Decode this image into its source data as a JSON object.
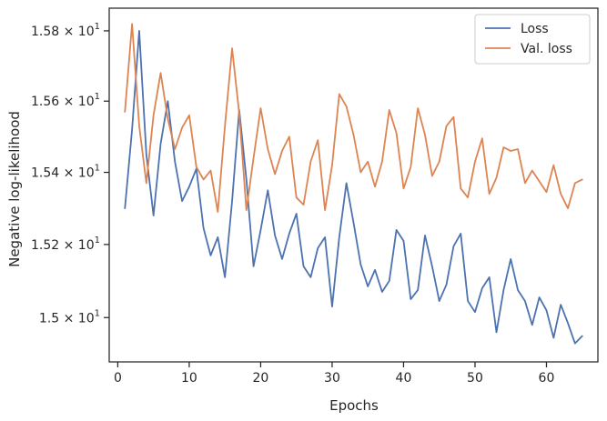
{
  "chart_data": {
    "type": "line",
    "title": "",
    "xlabel": "Epochs",
    "ylabel": "Negative log-likelihood",
    "xlim": [
      -1.2,
      67.2
    ],
    "ylim": [
      14.88,
      15.865
    ],
    "yscale": "log",
    "grid": false,
    "legend_position": "top-right",
    "x_ticks": [
      0,
      10,
      20,
      30,
      40,
      50,
      60
    ],
    "y_ticks": [
      {
        "value": 15.0,
        "mantissa": "1.5",
        "exponent": "1"
      },
      {
        "value": 15.2,
        "mantissa": "1.52",
        "exponent": "1"
      },
      {
        "value": 15.4,
        "mantissa": "1.54",
        "exponent": "1"
      },
      {
        "value": 15.6,
        "mantissa": "1.56",
        "exponent": "1"
      },
      {
        "value": 15.8,
        "mantissa": "1.58",
        "exponent": "1"
      }
    ],
    "x": [
      1,
      2,
      3,
      4,
      5,
      6,
      7,
      8,
      9,
      10,
      11,
      12,
      13,
      14,
      15,
      16,
      17,
      18,
      19,
      20,
      21,
      22,
      23,
      24,
      25,
      26,
      27,
      28,
      29,
      30,
      31,
      32,
      33,
      34,
      35,
      36,
      37,
      38,
      39,
      40,
      41,
      42,
      43,
      44,
      45,
      46,
      47,
      48,
      49,
      50,
      51,
      52,
      53,
      54,
      55,
      56,
      57,
      58,
      59,
      60,
      61,
      62,
      63,
      64,
      65
    ],
    "series": [
      {
        "name": "Loss",
        "color": "#4c72b0",
        "values": [
          15.3,
          15.52,
          15.8,
          15.45,
          15.28,
          15.48,
          15.6,
          15.43,
          15.32,
          15.36,
          15.41,
          15.245,
          15.17,
          15.22,
          15.11,
          15.32,
          15.575,
          15.38,
          15.14,
          15.24,
          15.35,
          15.225,
          15.16,
          15.23,
          15.285,
          15.14,
          15.11,
          15.19,
          15.22,
          15.03,
          15.22,
          15.37,
          15.26,
          15.145,
          15.085,
          15.13,
          15.07,
          15.1,
          15.24,
          15.21,
          15.05,
          15.075,
          15.225,
          15.14,
          15.045,
          15.09,
          15.195,
          15.23,
          15.045,
          15.015,
          15.08,
          15.11,
          14.96,
          15.075,
          15.16,
          15.075,
          15.045,
          14.98,
          15.055,
          15.02,
          14.945,
          15.035,
          14.985,
          14.93,
          14.95
        ]
      },
      {
        "name": "Val. loss",
        "color": "#dd8452",
        "values": [
          15.57,
          15.82,
          15.53,
          15.37,
          15.56,
          15.68,
          15.55,
          15.465,
          15.525,
          15.56,
          15.415,
          15.38,
          15.405,
          15.29,
          15.53,
          15.75,
          15.565,
          15.295,
          15.44,
          15.58,
          15.465,
          15.395,
          15.46,
          15.5,
          15.33,
          15.31,
          15.43,
          15.49,
          15.295,
          15.42,
          15.62,
          15.585,
          15.505,
          15.4,
          15.43,
          15.36,
          15.43,
          15.575,
          15.51,
          15.355,
          15.415,
          15.58,
          15.505,
          15.39,
          15.43,
          15.53,
          15.555,
          15.355,
          15.33,
          15.43,
          15.495,
          15.34,
          15.385,
          15.47,
          15.46,
          15.465,
          15.37,
          15.405,
          15.375,
          15.345,
          15.42,
          15.34,
          15.3,
          15.37,
          15.38
        ]
      }
    ]
  }
}
